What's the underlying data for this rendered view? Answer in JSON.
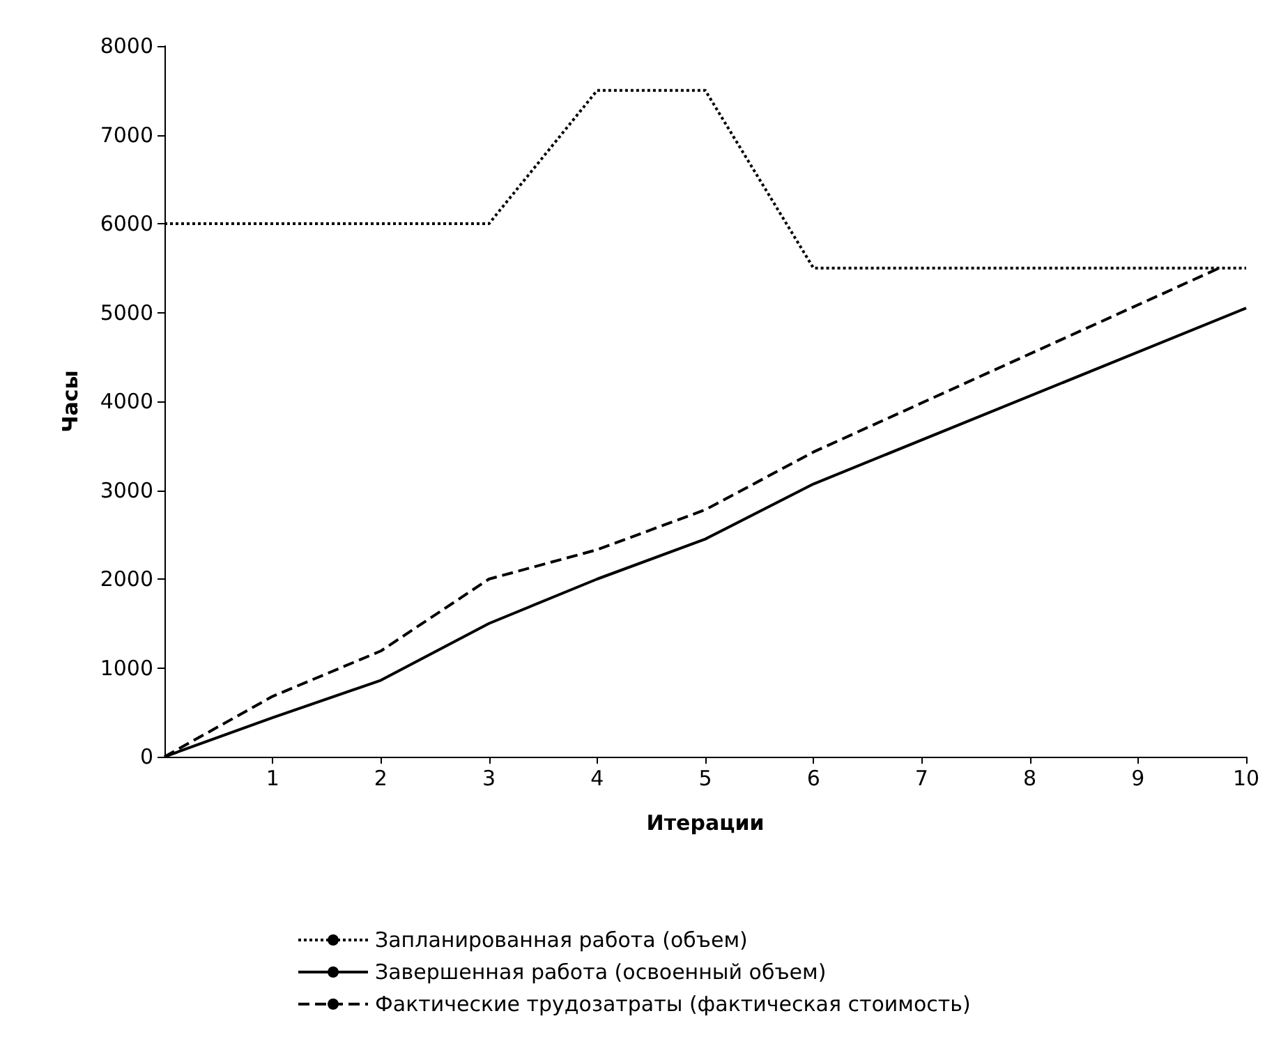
{
  "chart_data": {
    "type": "line",
    "xlabel": "Итерации",
    "ylabel": "Часы",
    "xlim": [
      0,
      10
    ],
    "xticks": [
      1,
      2,
      3,
      4,
      5,
      6,
      7,
      8,
      9,
      10
    ],
    "ylim": [
      0,
      8000
    ],
    "yticks": [
      0,
      1000,
      2000,
      3000,
      4000,
      5000,
      6000,
      7000,
      8000
    ],
    "grid": false,
    "legend": "bottom",
    "marker": "none",
    "series": [
      {
        "name": "Запланированная работа (объем)",
        "color": "#000000",
        "line_style": "dotted",
        "x": [
          0,
          3,
          4,
          5,
          6,
          10
        ],
        "values": [
          6000,
          6000,
          7500,
          7500,
          5500,
          5500
        ]
      },
      {
        "name": "Завершенная работа (освоенный объем)",
        "color": "#000000",
        "line_style": "solid",
        "x": [
          0,
          1,
          2,
          3,
          4,
          5,
          6,
          10
        ],
        "values": [
          0,
          440,
          860,
          1500,
          2000,
          2450,
          3070,
          5050
        ]
      },
      {
        "name": "Фактические трудозатраты (фактическая стоимость)",
        "color": "#000000",
        "line_style": "dashed",
        "x": [
          0,
          1,
          2,
          3,
          4,
          5,
          6,
          9.75
        ],
        "values": [
          0,
          680,
          1190,
          2000,
          2330,
          2780,
          3430,
          5500
        ]
      }
    ]
  }
}
